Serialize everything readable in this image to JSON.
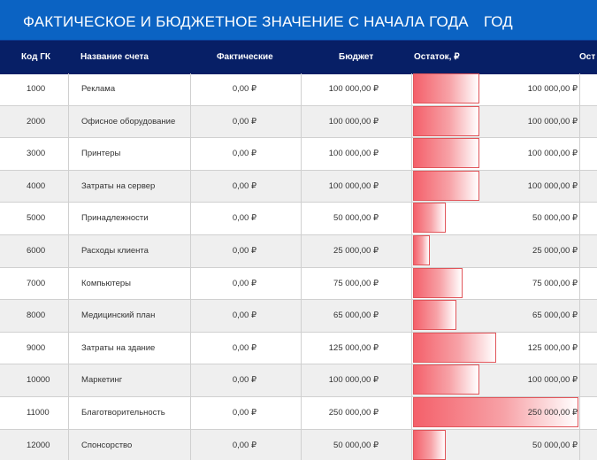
{
  "title": "ФАКТИЧЕСКОЕ И БЮДЖЕТНОЕ ЗНАЧЕНИЕ С НАЧАЛА ГОДА",
  "title_right": "ГОД",
  "columns": {
    "code": "Код ГК",
    "name": "Название счета",
    "actual": "Фактические",
    "budget": "Бюджет",
    "remaining": "Остаток, ₽",
    "partial": "Ост"
  },
  "bar_color": "#f4606a",
  "max_remaining": 250000,
  "rows": [
    {
      "code": "1000",
      "name": "Реклама",
      "actual": "0,00 ₽",
      "budget": "100 000,00 ₽",
      "remaining": "100 000,00 ₽",
      "remaining_value": 100000
    },
    {
      "code": "2000",
      "name": "Офисное оборудование",
      "actual": "0,00 ₽",
      "budget": "100 000,00 ₽",
      "remaining": "100 000,00 ₽",
      "remaining_value": 100000
    },
    {
      "code": "3000",
      "name": "Принтеры",
      "actual": "0,00 ₽",
      "budget": "100 000,00 ₽",
      "remaining": "100 000,00 ₽",
      "remaining_value": 100000
    },
    {
      "code": "4000",
      "name": "Затраты на сервер",
      "actual": "0,00 ₽",
      "budget": "100 000,00 ₽",
      "remaining": "100 000,00 ₽",
      "remaining_value": 100000
    },
    {
      "code": "5000",
      "name": "Принадлежности",
      "actual": "0,00 ₽",
      "budget": "50 000,00 ₽",
      "remaining": "50 000,00 ₽",
      "remaining_value": 50000
    },
    {
      "code": "6000",
      "name": "Расходы клиента",
      "actual": "0,00 ₽",
      "budget": "25 000,00 ₽",
      "remaining": "25 000,00 ₽",
      "remaining_value": 25000
    },
    {
      "code": "7000",
      "name": "Компьютеры",
      "actual": "0,00 ₽",
      "budget": "75 000,00 ₽",
      "remaining": "75 000,00 ₽",
      "remaining_value": 75000
    },
    {
      "code": "8000",
      "name": "Медицинский план",
      "actual": "0,00 ₽",
      "budget": "65 000,00 ₽",
      "remaining": "65 000,00 ₽",
      "remaining_value": 65000
    },
    {
      "code": "9000",
      "name": "Затраты на здание",
      "actual": "0,00 ₽",
      "budget": "125 000,00 ₽",
      "remaining": "125 000,00 ₽",
      "remaining_value": 125000
    },
    {
      "code": "10000",
      "name": "Маркетинг",
      "actual": "0,00 ₽",
      "budget": "100 000,00 ₽",
      "remaining": "100 000,00 ₽",
      "remaining_value": 100000
    },
    {
      "code": "11000",
      "name": "Благотворительность",
      "actual": "0,00 ₽",
      "budget": "250 000,00 ₽",
      "remaining": "250 000,00 ₽",
      "remaining_value": 250000
    },
    {
      "code": "12000",
      "name": "Спонсорство",
      "actual": "0,00 ₽",
      "budget": "50 000,00 ₽",
      "remaining": "50 000,00 ₽",
      "remaining_value": 50000
    }
  ]
}
